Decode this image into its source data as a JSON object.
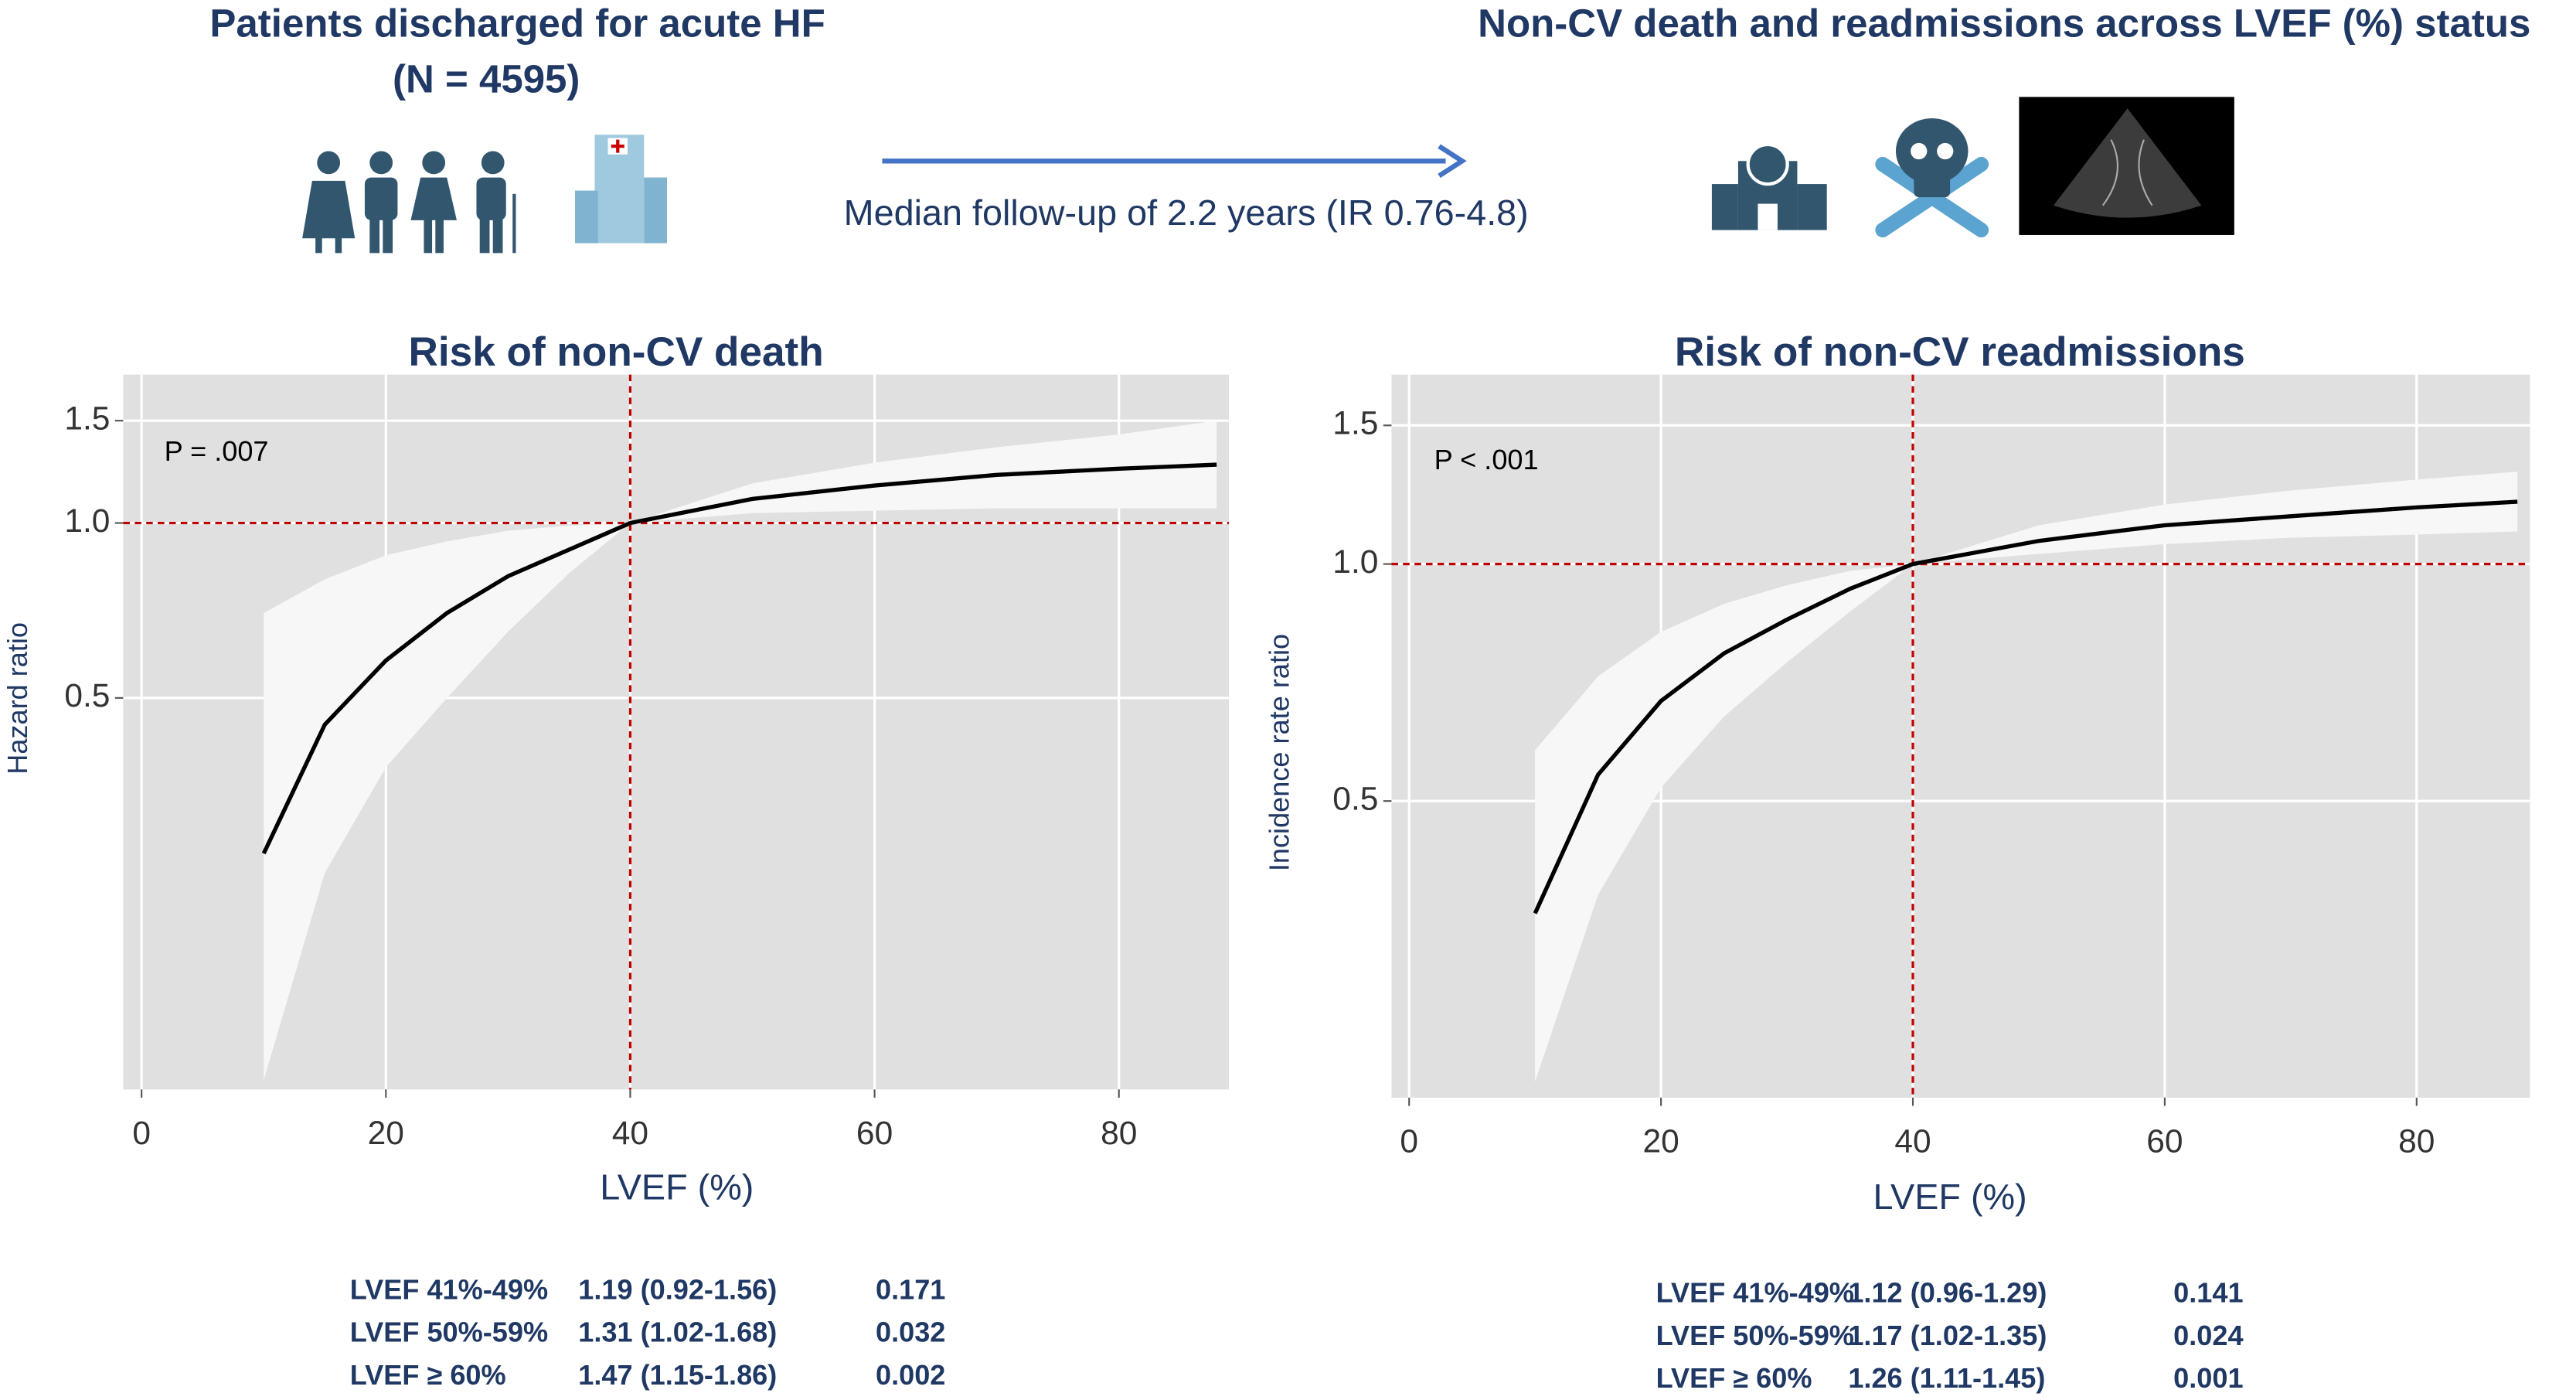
{
  "header": {
    "left_title": "Patients discharged for acute HF",
    "left_subtitle": "(N = 4595)",
    "follow_up": "Median follow-up of 2.2 years (IR 0.76-4.8)",
    "right_title": "Non-CV death and readmissions across LVEF (%) status"
  },
  "chart_data": [
    {
      "type": "line",
      "title": "Risk of non-CV death",
      "annotation": "P = .007",
      "x_label": "LVEF (%)",
      "y_label": "Hazard ratio",
      "log_y": true,
      "grid": true,
      "xlim": [
        -1.5,
        89
      ],
      "ylim": [
        0.106,
        1.8
      ],
      "xticks": [
        0,
        20,
        40,
        60,
        80
      ],
      "yticks": [
        0.5,
        {
          "value": 1,
          "label": "1.0"
        },
        1.5
      ],
      "x": [
        10,
        15,
        20,
        25,
        30,
        35,
        40,
        50,
        60,
        70,
        80,
        88
      ],
      "values": [
        0.27,
        0.45,
        0.58,
        0.7,
        0.81,
        0.9,
        1.0,
        1.1,
        1.16,
        1.21,
        1.24,
        1.26
      ],
      "upper": [
        0.7,
        0.8,
        0.88,
        0.93,
        0.97,
        0.99,
        1.0,
        1.17,
        1.27,
        1.35,
        1.42,
        1.5
      ],
      "lower": [
        0.11,
        0.25,
        0.38,
        0.5,
        0.65,
        0.82,
        1.0,
        1.04,
        1.05,
        1.06,
        1.06,
        1.06
      ],
      "color": "#000000",
      "band_color": "#f7f7f7",
      "ref_color": "#c00000",
      "ref_y": 1,
      "ref_x": 40,
      "table": {
        "rows": [
          [
            "LVEF 41%-49%",
            "1.19 (0.92-1.56)",
            "0.171"
          ],
          [
            "LVEF 50%-59%",
            "1.31 (1.02-1.68)",
            "0.032"
          ],
          [
            "LVEF ≥ 60%",
            "1.47 (1.15-1.86)",
            "0.002"
          ]
        ]
      }
    },
    {
      "type": "line",
      "title": "Risk of non-CV readmissions",
      "annotation": "P < .001",
      "x_label": "LVEF (%)",
      "y_label": "Incidence rate ratio",
      "log_y": true,
      "grid": true,
      "xlim": [
        -1.4,
        89
      ],
      "ylim": [
        0.21,
        1.74
      ],
      "xticks": [
        0,
        20,
        40,
        60,
        80
      ],
      "yticks": [
        0.5,
        {
          "value": 1,
          "label": "1.0"
        },
        1.5
      ],
      "x": [
        10,
        15,
        20,
        25,
        30,
        35,
        40,
        50,
        60,
        70,
        80,
        88
      ],
      "values": [
        0.36,
        0.54,
        0.67,
        0.77,
        0.85,
        0.93,
        1.0,
        1.07,
        1.12,
        1.15,
        1.18,
        1.2
      ],
      "upper": [
        0.58,
        0.72,
        0.82,
        0.89,
        0.94,
        0.98,
        1.0,
        1.12,
        1.19,
        1.24,
        1.28,
        1.31
      ],
      "lower": [
        0.22,
        0.38,
        0.52,
        0.64,
        0.75,
        0.87,
        1.0,
        1.03,
        1.06,
        1.08,
        1.09,
        1.1
      ],
      "color": "#000000",
      "band_color": "#f7f7f7",
      "ref_color": "#c00000",
      "ref_y": 1,
      "ref_x": 40,
      "table": {
        "rows": [
          [
            "LVEF 41%-49%",
            "1.12 (0.96-1.29)",
            "0.141"
          ],
          [
            "LVEF 50%-59%",
            "1.17 (1.02-1.35)",
            "0.024"
          ],
          [
            "LVEF ≥ 60%",
            "1.26 (1.11-1.45)",
            "0.001"
          ]
        ]
      }
    }
  ]
}
